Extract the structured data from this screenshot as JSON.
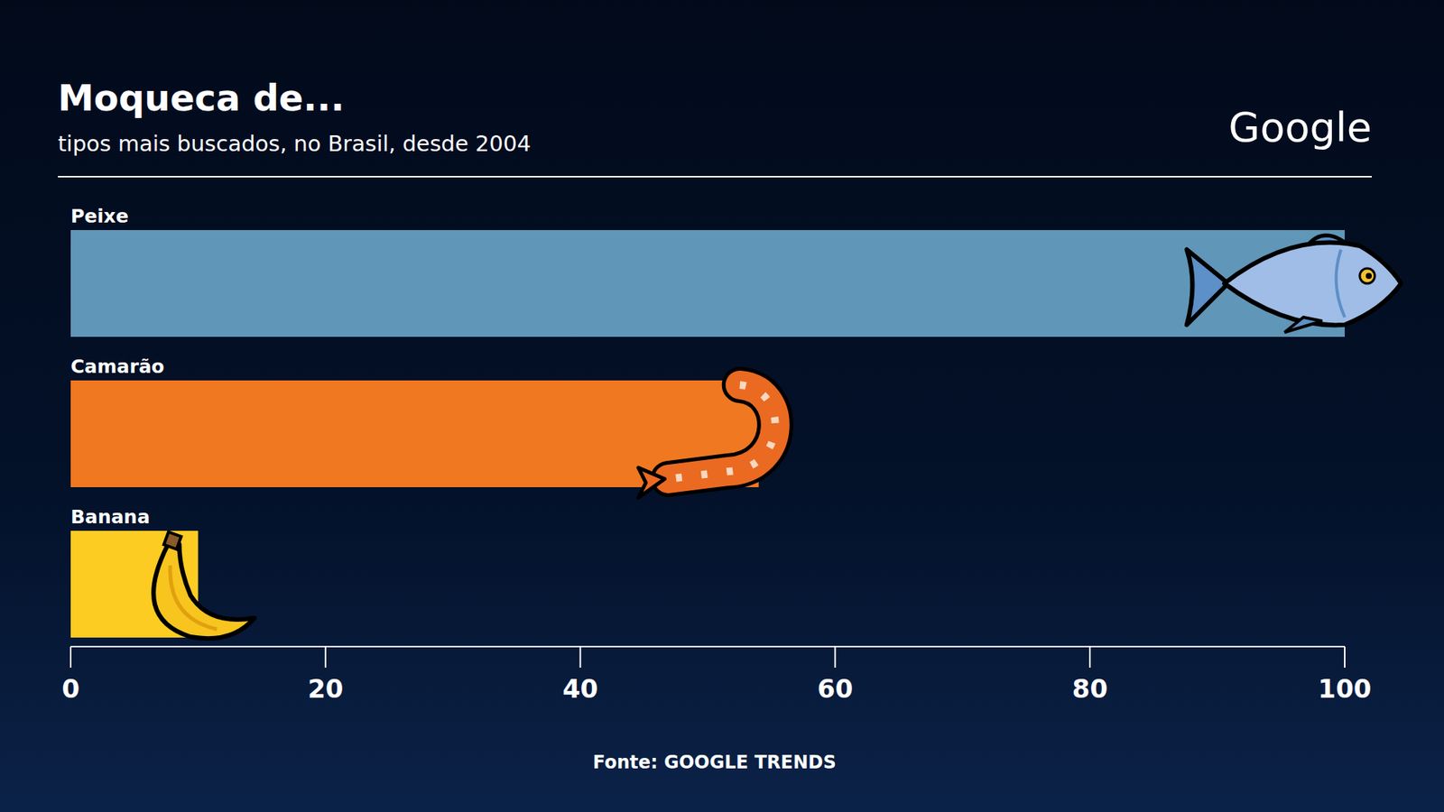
{
  "chart_data": {
    "type": "bar",
    "orientation": "horizontal",
    "title": "Moqueca de...",
    "subtitle": "tipos mais buscados, no Brasil, desde 2004",
    "logo": "Google",
    "source": "Fonte: GOOGLE TRENDS",
    "categories": [
      "Peixe",
      "Camarão",
      "Banana"
    ],
    "values": [
      100,
      54,
      10
    ],
    "colors": [
      "#6096b8",
      "#f07820",
      "#fccc22"
    ],
    "xlim": [
      0,
      100
    ],
    "xticks": [
      0,
      20,
      40,
      60,
      80,
      100
    ],
    "grid": false
  }
}
